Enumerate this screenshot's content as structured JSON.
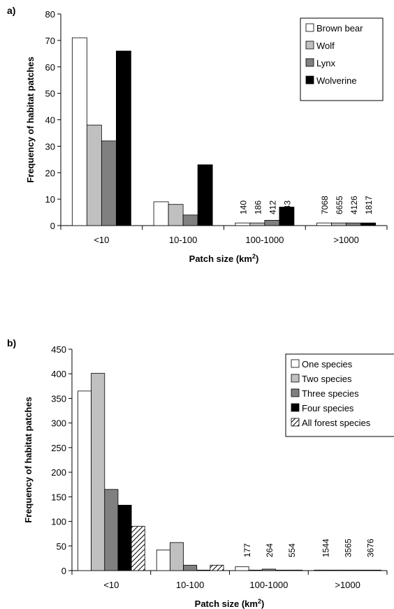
{
  "chart_data": [
    {
      "type": "bar",
      "panel_label": "a)",
      "xlabel_prefix": "Patch size (km",
      "xlabel_sup": "2",
      "xlabel_suffix": ")",
      "ylabel": "Frequency of habitat patches",
      "ylim": [
        0,
        80
      ],
      "yticks": [
        0,
        10,
        20,
        30,
        40,
        50,
        60,
        70,
        80
      ],
      "categories": [
        "<10",
        "10-100",
        "100-1000",
        ">1000"
      ],
      "legend_position": "top-right",
      "series": [
        {
          "name": "Brown bear",
          "values": [
            71,
            9,
            1,
            1
          ],
          "color": "#ffffff"
        },
        {
          "name": "Wolf",
          "values": [
            38,
            8,
            1,
            1
          ],
          "color": "#c0c0c0"
        },
        {
          "name": "Lynx",
          "values": [
            32,
            4,
            2,
            1
          ],
          "color": "#808080"
        },
        {
          "name": "Wolverine",
          "values": [
            66,
            23,
            7,
            1
          ],
          "color": "#000000"
        }
      ],
      "area_annotations": [
        {
          "category": "100-1000",
          "labels": [
            "140",
            "186",
            "412",
            "343"
          ]
        },
        {
          "category": ">1000",
          "labels": [
            "7068",
            "6655",
            "4126",
            "1817"
          ]
        }
      ]
    },
    {
      "type": "bar",
      "panel_label": "b)",
      "xlabel_prefix": "Patch size (km",
      "xlabel_sup": "2",
      "xlabel_suffix": ")",
      "ylabel": "Frequency of habitat patches",
      "ylim": [
        0,
        450
      ],
      "yticks": [
        0,
        50,
        100,
        150,
        200,
        250,
        300,
        350,
        400,
        450
      ],
      "categories": [
        "<10",
        "10-100",
        "100-1000",
        ">1000"
      ],
      "legend_position": "top-right",
      "series": [
        {
          "name": "One species",
          "values": [
            365,
            42,
            8,
            1
          ],
          "color": "#ffffff"
        },
        {
          "name": "Two species",
          "values": [
            401,
            57,
            1,
            1
          ],
          "color": "#c0c0c0"
        },
        {
          "name": "Three species",
          "values": [
            165,
            11,
            3,
            1
          ],
          "color": "#808080"
        },
        {
          "name": "Four species",
          "values": [
            133,
            1,
            1,
            1
          ],
          "color": "#000000"
        },
        {
          "name": "All forest species",
          "values": [
            90,
            11,
            1,
            1
          ],
          "color": "hatch"
        }
      ],
      "area_annotations": [
        {
          "category": "100-1000",
          "labels": [
            "177",
            "264",
            "554"
          ]
        },
        {
          "category": ">1000",
          "labels": [
            "1544",
            "3565",
            "3676"
          ]
        }
      ]
    }
  ]
}
